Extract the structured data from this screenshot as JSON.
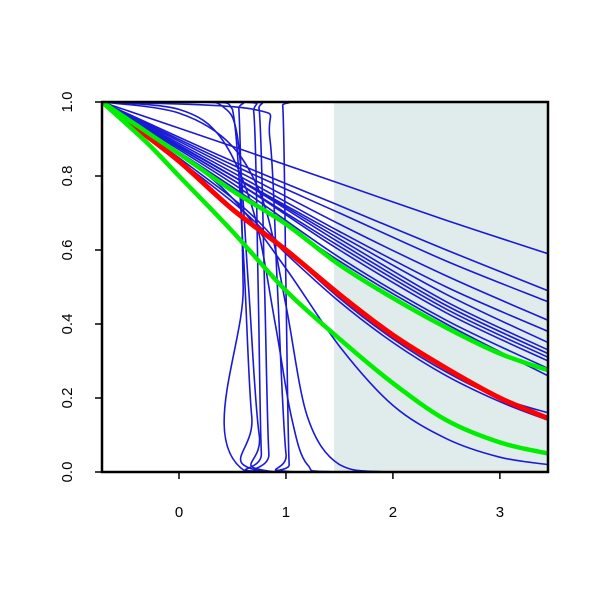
{
  "chart_data": {
    "type": "line",
    "title": "",
    "xlabel": "",
    "ylabel": "",
    "xlim": [
      -0.72,
      3.45
    ],
    "ylim": [
      0.0,
      1.0
    ],
    "grid": false,
    "x_ticks": [
      0,
      1,
      2,
      3
    ],
    "x_tick_labels": [
      "0",
      "1",
      "2",
      "3"
    ],
    "y_ticks": [
      0.0,
      0.2,
      0.4,
      0.6,
      0.8,
      1.0
    ],
    "y_tick_labels": [
      "0.0",
      "0.2",
      "0.4",
      "0.6",
      "0.8",
      "1.0"
    ],
    "shaded_region": {
      "x_start": 1.45,
      "x_end": 3.45,
      "color": "#dfeceb"
    },
    "colors": {
      "blue": "#1a1ad6",
      "red": "#ff0000",
      "green": "#00ee00"
    },
    "series": [
      {
        "color": "blue",
        "width": 1.6,
        "points": [
          [
            -0.72,
            1.0
          ],
          [
            0.5,
            0.84
          ],
          [
            1.5,
            0.72
          ],
          [
            2.5,
            0.6
          ],
          [
            3.45,
            0.49
          ]
        ]
      },
      {
        "color": "blue",
        "width": 1.6,
        "points": [
          [
            -0.72,
            1.0
          ],
          [
            0.5,
            0.88
          ],
          [
            1.5,
            0.78
          ],
          [
            2.5,
            0.68
          ],
          [
            3.45,
            0.59
          ]
        ]
      },
      {
        "color": "blue",
        "width": 1.6,
        "points": [
          [
            -0.72,
            1.0
          ],
          [
            0.5,
            0.83
          ],
          [
            1.5,
            0.7
          ],
          [
            2.5,
            0.57
          ],
          [
            3.45,
            0.46
          ]
        ]
      },
      {
        "color": "blue",
        "width": 1.6,
        "points": [
          [
            -0.72,
            1.0
          ],
          [
            0.5,
            0.82
          ],
          [
            1.5,
            0.67
          ],
          [
            2.5,
            0.53
          ],
          [
            3.45,
            0.41
          ]
        ]
      },
      {
        "color": "blue",
        "width": 1.6,
        "points": [
          [
            -0.72,
            1.0
          ],
          [
            0.5,
            0.81
          ],
          [
            1.5,
            0.65
          ],
          [
            2.5,
            0.5
          ],
          [
            3.45,
            0.38
          ]
        ]
      },
      {
        "color": "blue",
        "width": 1.6,
        "points": [
          [
            -0.72,
            1.0
          ],
          [
            0.5,
            0.8
          ],
          [
            1.5,
            0.64
          ],
          [
            2.5,
            0.48
          ],
          [
            3.45,
            0.35
          ]
        ]
      },
      {
        "color": "blue",
        "width": 1.6,
        "points": [
          [
            -0.72,
            1.0
          ],
          [
            0.5,
            0.8
          ],
          [
            1.5,
            0.63
          ],
          [
            2.5,
            0.46
          ],
          [
            3.45,
            0.33
          ]
        ]
      },
      {
        "color": "blue",
        "width": 1.6,
        "points": [
          [
            -0.72,
            1.0
          ],
          [
            0.5,
            0.79
          ],
          [
            1.5,
            0.61
          ],
          [
            2.5,
            0.44
          ],
          [
            3.45,
            0.31
          ]
        ]
      },
      {
        "color": "blue",
        "width": 1.6,
        "points": [
          [
            -0.72,
            1.0
          ],
          [
            0.5,
            0.79
          ],
          [
            1.5,
            0.6
          ],
          [
            2.5,
            0.43
          ],
          [
            3.45,
            0.3
          ]
        ]
      },
      {
        "color": "blue",
        "width": 1.6,
        "points": [
          [
            -0.72,
            1.0
          ],
          [
            0.5,
            0.8
          ],
          [
            1.5,
            0.62
          ],
          [
            2.5,
            0.45
          ],
          [
            3.45,
            0.32
          ]
        ]
      },
      {
        "color": "blue",
        "width": 1.6,
        "points": [
          [
            -0.72,
            1.0
          ],
          [
            0.5,
            0.78
          ],
          [
            1.5,
            0.58
          ],
          [
            2.5,
            0.41
          ],
          [
            3.45,
            0.28
          ]
        ]
      },
      {
        "color": "blue",
        "width": 1.6,
        "points": [
          [
            -0.72,
            1.0
          ],
          [
            0.5,
            0.77
          ],
          [
            1.5,
            0.57
          ],
          [
            2.5,
            0.4
          ],
          [
            3.45,
            0.26
          ]
        ]
      },
      {
        "color": "blue",
        "width": 1.6,
        "points": [
          [
            -0.72,
            1.0
          ],
          [
            0.5,
            0.74
          ],
          [
            1.0,
            0.6
          ],
          [
            1.5,
            0.47
          ],
          [
            2.0,
            0.36
          ],
          [
            2.5,
            0.27
          ],
          [
            3.0,
            0.2
          ],
          [
            3.45,
            0.16
          ]
        ]
      },
      {
        "color": "blue",
        "width": 1.6,
        "points": [
          [
            -0.72,
            1.0
          ],
          [
            0.5,
            0.73
          ],
          [
            1.0,
            0.59
          ],
          [
            1.5,
            0.46
          ],
          [
            2.0,
            0.35
          ],
          [
            2.5,
            0.26
          ],
          [
            3.0,
            0.19
          ],
          [
            3.45,
            0.14
          ]
        ]
      },
      {
        "color": "blue",
        "width": 1.6,
        "points": [
          [
            -0.72,
            1.0
          ],
          [
            0.0,
            0.86
          ],
          [
            0.5,
            0.74
          ],
          [
            1.0,
            0.55
          ],
          [
            1.5,
            0.34
          ],
          [
            2.0,
            0.18
          ],
          [
            2.5,
            0.09
          ],
          [
            3.0,
            0.04
          ],
          [
            3.45,
            0.02
          ]
        ]
      },
      {
        "color": "blue",
        "width": 1.6,
        "points": [
          [
            -0.72,
            1.0
          ],
          [
            0.0,
            0.97
          ],
          [
            0.5,
            0.88
          ],
          [
            0.8,
            0.72
          ],
          [
            1.0,
            0.45
          ],
          [
            1.2,
            0.15
          ],
          [
            1.5,
            0.02
          ],
          [
            2.0,
            0.0
          ],
          [
            3.45,
            0.0
          ]
        ]
      },
      {
        "color": "blue",
        "width": 1.6,
        "points": [
          [
            -0.72,
            1.0
          ],
          [
            0.2,
            1.0
          ],
          [
            0.4,
            0.99
          ],
          [
            0.55,
            0.9
          ],
          [
            0.65,
            0.5
          ],
          [
            0.75,
            0.1
          ],
          [
            0.9,
            0.0
          ],
          [
            3.45,
            0.0
          ]
        ]
      },
      {
        "color": "blue",
        "width": 1.6,
        "points": [
          [
            -0.72,
            1.0
          ],
          [
            0.3,
            1.0
          ],
          [
            0.5,
            0.98
          ],
          [
            0.6,
            0.6
          ],
          [
            0.68,
            0.15
          ],
          [
            0.8,
            0.0
          ],
          [
            3.45,
            0.0
          ]
        ]
      },
      {
        "color": "blue",
        "width": 1.6,
        "points": [
          [
            -0.72,
            1.0
          ],
          [
            0.5,
            1.0
          ],
          [
            0.56,
            0.98
          ],
          [
            0.6,
            0.5
          ],
          [
            0.63,
            0.0
          ],
          [
            3.45,
            0.0
          ]
        ]
      },
      {
        "color": "blue",
        "width": 1.6,
        "points": [
          [
            -0.72,
            1.0
          ],
          [
            0.6,
            1.0
          ],
          [
            0.7,
            0.97
          ],
          [
            0.74,
            0.5
          ],
          [
            0.77,
            0.05
          ],
          [
            0.82,
            0.0
          ],
          [
            3.45,
            0.0
          ]
        ]
      },
      {
        "color": "blue",
        "width": 1.6,
        "points": [
          [
            -0.72,
            1.0
          ],
          [
            0.65,
            1.0
          ],
          [
            0.75,
            0.98
          ],
          [
            0.8,
            0.5
          ],
          [
            0.84,
            0.05
          ],
          [
            0.9,
            0.0
          ],
          [
            3.45,
            0.0
          ]
        ]
      },
      {
        "color": "blue",
        "width": 1.6,
        "points": [
          [
            -0.72,
            1.0
          ],
          [
            0.9,
            1.0
          ],
          [
            0.97,
            0.99
          ],
          [
            1.0,
            0.5
          ],
          [
            1.03,
            0.02
          ],
          [
            1.08,
            0.0
          ],
          [
            3.45,
            0.0
          ]
        ]
      },
      {
        "color": "blue",
        "width": 1.6,
        "points": [
          [
            -0.72,
            1.0
          ],
          [
            0.7,
            0.98
          ],
          [
            0.85,
            0.9
          ],
          [
            0.92,
            0.5
          ],
          [
            1.0,
            0.05
          ],
          [
            1.1,
            0.0
          ],
          [
            3.45,
            0.0
          ]
        ]
      },
      {
        "color": "blue",
        "width": 1.6,
        "points": [
          [
            -0.72,
            1.0
          ],
          [
            0.0,
            0.98
          ],
          [
            0.4,
            0.9
          ],
          [
            0.7,
            0.7
          ],
          [
            0.9,
            0.4
          ],
          [
            1.05,
            0.15
          ],
          [
            1.2,
            0.02
          ],
          [
            1.5,
            0.0
          ],
          [
            3.45,
            0.0
          ]
        ]
      },
      {
        "color": "red",
        "width": 5,
        "points": [
          [
            -0.45,
            0.94
          ],
          [
            0.0,
            0.84
          ],
          [
            0.5,
            0.71
          ],
          [
            1.0,
            0.6
          ],
          [
            1.5,
            0.48
          ],
          [
            2.0,
            0.37
          ],
          [
            2.5,
            0.28
          ],
          [
            3.0,
            0.2
          ],
          [
            3.45,
            0.145
          ]
        ]
      },
      {
        "color": "green",
        "width": 4.5,
        "points": [
          [
            -0.72,
            1.0
          ],
          [
            0.0,
            0.86
          ],
          [
            0.5,
            0.76
          ],
          [
            1.0,
            0.67
          ],
          [
            1.5,
            0.56
          ],
          [
            2.0,
            0.47
          ],
          [
            2.5,
            0.39
          ],
          [
            3.0,
            0.32
          ],
          [
            3.45,
            0.275
          ]
        ]
      },
      {
        "color": "green",
        "width": 4.5,
        "points": [
          [
            -0.72,
            1.0
          ],
          [
            -0.3,
            0.89
          ],
          [
            0.0,
            0.8
          ],
          [
            0.5,
            0.65
          ],
          [
            1.0,
            0.49
          ],
          [
            1.5,
            0.36
          ],
          [
            2.0,
            0.24
          ],
          [
            2.5,
            0.14
          ],
          [
            3.0,
            0.08
          ],
          [
            3.45,
            0.05
          ]
        ]
      }
    ]
  }
}
